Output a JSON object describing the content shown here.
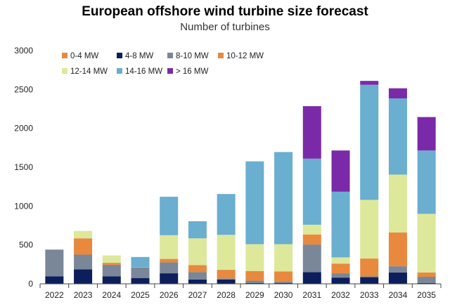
{
  "title": "European offshore wind turbine size forecast",
  "subtitle": "Number of turbines",
  "chart_data": {
    "type": "bar",
    "stacked": true,
    "title": "European offshore wind turbine size forecast",
    "subtitle": "Number of turbines",
    "xlabel": "",
    "ylabel": "",
    "ylim": [
      0,
      3000
    ],
    "yticks": [
      0,
      500,
      1000,
      1500,
      2000,
      2500,
      3000
    ],
    "grid": false,
    "legend_position": "top-left",
    "categories": [
      "2022",
      "2023",
      "2024",
      "2025",
      "2026",
      "2027",
      "2028",
      "2029",
      "2030",
      "2031",
      "2032",
      "2033",
      "2034",
      "2035"
    ],
    "series": [
      {
        "name": "0-4 MW",
        "color": "#e8893e",
        "values": [
          0,
          0,
          0,
          0,
          0,
          0,
          0,
          0,
          0,
          0,
          0,
          0,
          0,
          0
        ]
      },
      {
        "name": "4-8 MW",
        "color": "#0c1f5c",
        "values": [
          95,
          185,
          95,
          75,
          135,
          55,
          55,
          10,
          10,
          150,
          80,
          85,
          145,
          10
        ]
      },
      {
        "name": "8-10 MW",
        "color": "#7a8798",
        "values": [
          345,
          190,
          150,
          135,
          140,
          95,
          15,
          30,
          20,
          355,
          55,
          10,
          80,
          80
        ]
      },
      {
        "name": "10-12 MW",
        "color": "#e8893e",
        "values": [
          0,
          210,
          25,
          5,
          45,
          90,
          110,
          125,
          130,
          130,
          125,
          230,
          435,
          55
        ]
      },
      {
        "name": "12-14 MW",
        "color": "#dde89a",
        "values": [
          0,
          95,
          95,
          0,
          305,
          345,
          450,
          345,
          350,
          125,
          80,
          755,
          745,
          755
        ]
      },
      {
        "name": "14-16 MW",
        "color": "#6aaed0",
        "values": [
          0,
          0,
          0,
          130,
          495,
          220,
          525,
          1065,
          1185,
          850,
          845,
          1480,
          980,
          815
        ]
      },
      {
        "name": "> 16 MW",
        "color": "#7a2aa8",
        "values": [
          0,
          0,
          0,
          0,
          0,
          0,
          0,
          0,
          0,
          675,
          530,
          50,
          130,
          430
        ]
      }
    ]
  }
}
